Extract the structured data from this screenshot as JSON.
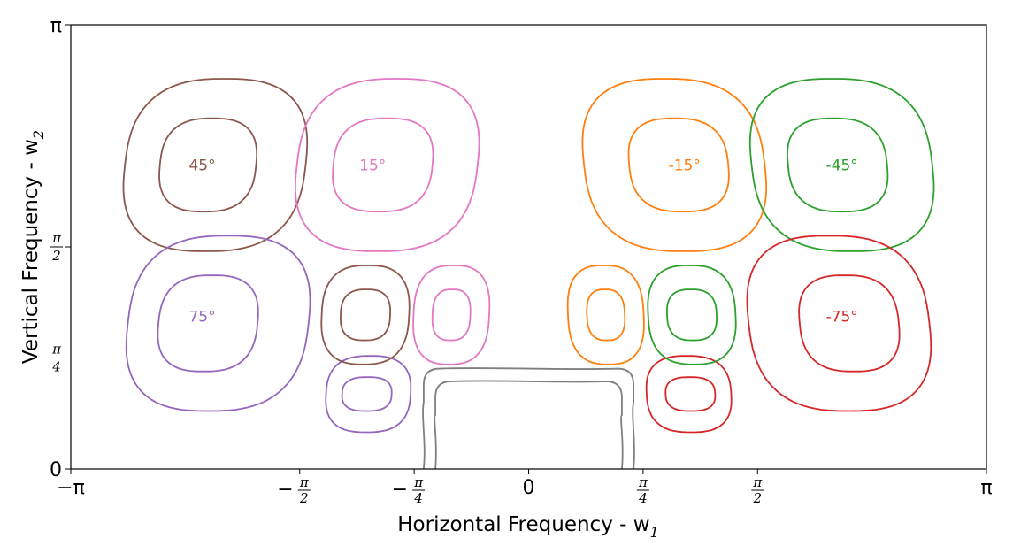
{
  "chart_data": {
    "type": "contour",
    "title": "",
    "xlabel": "Horizontal Frequency - w",
    "xlabel_subscript": "1",
    "ylabel": "Vertical Frequency - w",
    "ylabel_subscript": "2",
    "xlim": [
      -3.14159,
      3.14159
    ],
    "ylim": [
      0,
      3.14159
    ],
    "grid": false,
    "xticks": [
      {
        "value": -3.14159,
        "label": "−π",
        "kind": "plain"
      },
      {
        "value": -1.5708,
        "label": "−",
        "num": "π",
        "den": "2",
        "kind": "frac"
      },
      {
        "value": -0.7854,
        "label": "−",
        "num": "π",
        "den": "4",
        "kind": "frac"
      },
      {
        "value": 0,
        "label": "0",
        "kind": "plain"
      },
      {
        "value": 0.7854,
        "label": "",
        "num": "π",
        "den": "4",
        "kind": "frac"
      },
      {
        "value": 1.5708,
        "label": "",
        "num": "π",
        "den": "2",
        "kind": "frac"
      },
      {
        "value": 3.14159,
        "label": "π",
        "kind": "plain"
      }
    ],
    "yticks": [
      {
        "value": 0,
        "label": "0",
        "kind": "plain"
      },
      {
        "value": 0.7854,
        "label": "",
        "num": "π",
        "den": "4",
        "kind": "frac"
      },
      {
        "value": 1.5708,
        "label": "",
        "num": "π",
        "den": "2",
        "kind": "frac"
      },
      {
        "value": 3.14159,
        "label": "π",
        "kind": "plain"
      }
    ],
    "series": [
      {
        "name": "45°",
        "color": "#8c564b",
        "label": "45°",
        "label_at": [
          -2.24,
          2.15
        ],
        "contours": [
          {
            "cx": -2.15,
            "cy": 2.15,
            "rx": 0.62,
            "ry": 0.61,
            "squash": 0.12
          },
          {
            "cx": -2.2,
            "cy": 2.15,
            "rx": 0.33,
            "ry": 0.33,
            "squash": 0.1
          }
        ]
      },
      {
        "name": "15°",
        "color": "#e377c2",
        "label": "15°",
        "label_at": [
          -1.07,
          2.15
        ],
        "contours": [
          {
            "cx": -0.97,
            "cy": 2.15,
            "rx": 0.62,
            "ry": 0.61,
            "squash": 0.12
          },
          {
            "cx": -1.0,
            "cy": 2.15,
            "rx": 0.34,
            "ry": 0.33,
            "squash": 0.1
          }
        ]
      },
      {
        "name": "-15°",
        "color": "#ff7f0e",
        "label": "-15°",
        "label_at": [
          1.07,
          2.15
        ],
        "contours": [
          {
            "cx": 1.0,
            "cy": 2.15,
            "rx": 0.62,
            "ry": 0.61,
            "squash": -0.12
          },
          {
            "cx": 1.03,
            "cy": 2.15,
            "rx": 0.34,
            "ry": 0.33,
            "squash": -0.1
          }
        ]
      },
      {
        "name": "-45°",
        "color": "#2ca02c",
        "label": "-45°",
        "label_at": [
          2.15,
          2.15
        ],
        "contours": [
          {
            "cx": 2.15,
            "cy": 2.15,
            "rx": 0.62,
            "ry": 0.61,
            "squash": -0.12
          },
          {
            "cx": 2.12,
            "cy": 2.15,
            "rx": 0.34,
            "ry": 0.33,
            "squash": -0.1
          }
        ]
      },
      {
        "name": "75°",
        "color": "#9467bd",
        "label": "75°",
        "label_at": [
          -2.24,
          1.08
        ],
        "contours": [
          {
            "cx": -2.13,
            "cy": 1.03,
            "rx": 0.62,
            "ry": 0.62,
            "squash": 0.12
          },
          {
            "cx": -2.2,
            "cy": 1.03,
            "rx": 0.34,
            "ry": 0.34,
            "squash": 0.1
          },
          {
            "cx": -1.1,
            "cy": 0.53,
            "rx": 0.29,
            "ry": 0.27,
            "squash": 0.06
          },
          {
            "cx": -1.11,
            "cy": 0.53,
            "rx": 0.17,
            "ry": 0.12,
            "squash": 0.04
          }
        ]
      },
      {
        "name": "-75°",
        "color": "#d62728",
        "label": "-75°",
        "label_at": [
          2.15,
          1.08
        ],
        "contours": [
          {
            "cx": 2.13,
            "cy": 1.03,
            "rx": 0.62,
            "ry": 0.62,
            "squash": -0.12
          },
          {
            "cx": 2.2,
            "cy": 1.03,
            "rx": 0.34,
            "ry": 0.34,
            "squash": -0.1
          },
          {
            "cx": 1.1,
            "cy": 0.53,
            "rx": 0.29,
            "ry": 0.27,
            "squash": -0.06
          },
          {
            "cx": 1.11,
            "cy": 0.53,
            "rx": 0.17,
            "ry": 0.12,
            "squash": -0.04
          }
        ]
      },
      {
        "name": "",
        "color": "#8c564b",
        "label": "",
        "contours": [
          {
            "cx": -1.12,
            "cy": 1.09,
            "rx": 0.3,
            "ry": 0.35,
            "squash": 0.05
          },
          {
            "cx": -1.12,
            "cy": 1.09,
            "rx": 0.17,
            "ry": 0.18,
            "squash": 0.04
          }
        ]
      },
      {
        "name": "",
        "color": "#e377c2",
        "label": "",
        "contours": [
          {
            "cx": -0.53,
            "cy": 1.09,
            "rx": 0.26,
            "ry": 0.35,
            "squash": 0.05
          },
          {
            "cx": -0.53,
            "cy": 1.09,
            "rx": 0.13,
            "ry": 0.18,
            "squash": 0.04
          }
        ]
      },
      {
        "name": "",
        "color": "#ff7f0e",
        "label": "",
        "contours": [
          {
            "cx": 0.53,
            "cy": 1.09,
            "rx": 0.26,
            "ry": 0.35,
            "squash": -0.05
          },
          {
            "cx": 0.53,
            "cy": 1.09,
            "rx": 0.13,
            "ry": 0.18,
            "squash": -0.04
          }
        ]
      },
      {
        "name": "",
        "color": "#2ca02c",
        "label": "",
        "contours": [
          {
            "cx": 1.12,
            "cy": 1.09,
            "rx": 0.3,
            "ry": 0.35,
            "squash": -0.05
          },
          {
            "cx": 1.12,
            "cy": 1.09,
            "rx": 0.17,
            "ry": 0.18,
            "squash": -0.04
          }
        ]
      },
      {
        "name": "",
        "color": "#7f7f7f",
        "label": "",
        "shape": "lowpass",
        "contours": [
          {
            "x0": -0.72,
            "x1": 0.72,
            "top": 0.71
          },
          {
            "x0": -0.64,
            "x1": 0.64,
            "top": 0.62
          }
        ]
      }
    ]
  }
}
